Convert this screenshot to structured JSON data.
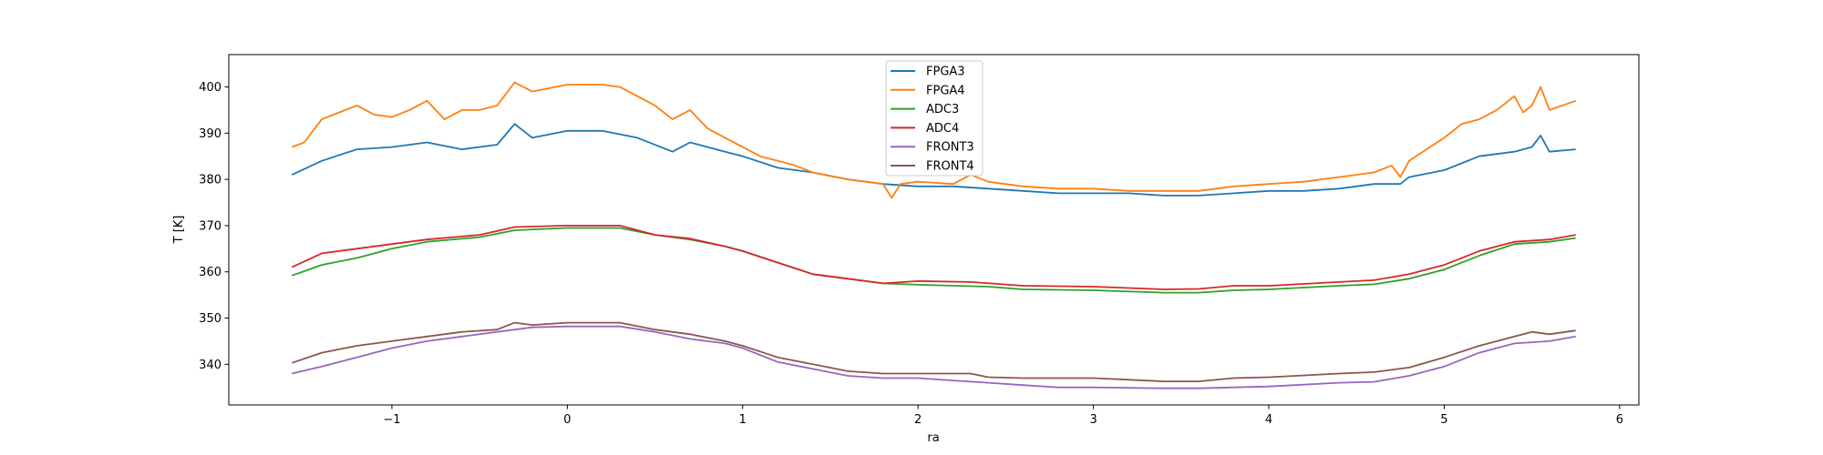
{
  "chart_data": {
    "type": "line",
    "title": "",
    "xlabel": "ra",
    "ylabel": "T [K]",
    "xlim": [
      -1.93,
      6.11
    ],
    "ylim": [
      331.2,
      407.0
    ],
    "xticks": [
      -1,
      0,
      1,
      2,
      3,
      4,
      5,
      6
    ],
    "xtick_labels": [
      "−1",
      "0",
      "1",
      "2",
      "3",
      "4",
      "5",
      "6"
    ],
    "yticks": [
      340,
      350,
      360,
      370,
      380,
      390,
      400
    ],
    "ytick_labels": [
      "340",
      "350",
      "360",
      "370",
      "380",
      "390",
      "400"
    ],
    "grid": false,
    "legend_position": "top-center",
    "series": [
      {
        "name": "FPGA3",
        "color": "#1f77b4",
        "x": [
          -1.57,
          -1.4,
          -1.2,
          -1,
          -0.8,
          -0.6,
          -0.4,
          -0.3,
          -0.2,
          0,
          0.2,
          0.4,
          0.6,
          0.7,
          0.9,
          1,
          1.2,
          1.4,
          1.6,
          1.8,
          2,
          2.2,
          2.4,
          2.6,
          2.8,
          3,
          3.2,
          3.4,
          3.6,
          3.8,
          4,
          4.2,
          4.4,
          4.6,
          4.75,
          4.8,
          5,
          5.2,
          5.3,
          5.4,
          5.5,
          5.55,
          5.6,
          5.75
        ],
        "y": [
          381,
          384,
          386.5,
          387,
          388,
          386.5,
          387.5,
          392,
          389,
          390.5,
          390.5,
          389,
          386,
          388,
          386,
          385,
          382.5,
          381.5,
          380,
          379,
          378.5,
          378.5,
          378,
          377.5,
          377,
          377,
          377,
          376.5,
          376.5,
          377,
          377.5,
          377.5,
          378,
          379,
          379,
          380.5,
          382,
          385,
          385.5,
          386,
          387,
          389.5,
          386,
          386.5
        ]
      },
      {
        "name": "FPGA4",
        "color": "#ff7f0e",
        "x": [
          -1.57,
          -1.5,
          -1.4,
          -1.3,
          -1.2,
          -1.1,
          -1,
          -0.9,
          -0.8,
          -0.7,
          -0.6,
          -0.5,
          -0.4,
          -0.3,
          -0.2,
          0,
          0.2,
          0.3,
          0.4,
          0.5,
          0.6,
          0.7,
          0.8,
          0.9,
          1,
          1.1,
          1.2,
          1.3,
          1.4,
          1.6,
          1.8,
          1.85,
          1.9,
          2,
          2.2,
          2.3,
          2.4,
          2.6,
          2.8,
          3,
          3.2,
          3.4,
          3.6,
          3.8,
          4,
          4.2,
          4.4,
          4.6,
          4.7,
          4.75,
          4.8,
          5,
          5.1,
          5.2,
          5.3,
          5.4,
          5.45,
          5.5,
          5.55,
          5.6,
          5.75
        ],
        "y": [
          387,
          388,
          393,
          394.5,
          396,
          394,
          393.5,
          395,
          397,
          393,
          395,
          395,
          396,
          401,
          399,
          400.5,
          400.5,
          400,
          398,
          396,
          393,
          395,
          391,
          389,
          387,
          385,
          384,
          383,
          381.5,
          380,
          379,
          376,
          379,
          379.5,
          379,
          381,
          379.5,
          378.5,
          378,
          378,
          377.5,
          377.5,
          377.5,
          378.5,
          379,
          379.5,
          380.5,
          381.5,
          383,
          380.5,
          384,
          389,
          392,
          393,
          395,
          398,
          394.5,
          396,
          400,
          395,
          397
        ]
      },
      {
        "name": "ADC3",
        "color": "#2ca02c",
        "x": [
          -1.57,
          -1.4,
          -1.2,
          -1,
          -0.8,
          -0.5,
          -0.3,
          0,
          0.3,
          0.5,
          0.7,
          0.9,
          1,
          1.2,
          1.4,
          1.6,
          1.8,
          2,
          2.4,
          2.6,
          3,
          3.4,
          3.6,
          3.8,
          4,
          4.4,
          4.6,
          4.8,
          5,
          5.2,
          5.4,
          5.6,
          5.75
        ],
        "y": [
          359.2,
          361.5,
          363,
          365,
          366.5,
          367.5,
          369,
          369.5,
          369.5,
          368,
          367,
          365.5,
          364.5,
          362,
          359.5,
          358.5,
          357.5,
          357.2,
          356.8,
          356.2,
          356,
          355.5,
          355.5,
          356,
          356.2,
          357,
          357.3,
          358.5,
          360.5,
          363.5,
          366,
          366.5,
          367.3
        ]
      },
      {
        "name": "ADC4",
        "color": "#d62728",
        "x": [
          -1.57,
          -1.4,
          -1.2,
          -1,
          -0.8,
          -0.5,
          -0.3,
          0,
          0.3,
          0.5,
          0.7,
          0.9,
          1,
          1.2,
          1.4,
          1.6,
          1.8,
          2,
          2.3,
          2.6,
          3,
          3.4,
          3.6,
          3.8,
          4,
          4.4,
          4.6,
          4.8,
          5,
          5.2,
          5.4,
          5.6,
          5.75
        ],
        "y": [
          361,
          364,
          365,
          366,
          367,
          368,
          369.7,
          370,
          370,
          368,
          367.2,
          365.5,
          364.5,
          362,
          359.5,
          358.5,
          357.5,
          358,
          357.8,
          357,
          356.8,
          356.2,
          356.3,
          357,
          357,
          357.8,
          358.2,
          359.5,
          361.5,
          364.5,
          366.5,
          367,
          368
        ]
      },
      {
        "name": "FRONT3",
        "color": "#9467bd",
        "x": [
          -1.57,
          -1.4,
          -1.2,
          -1,
          -0.8,
          -0.6,
          -0.4,
          -0.2,
          0,
          0.3,
          0.5,
          0.7,
          0.9,
          1,
          1.2,
          1.4,
          1.6,
          1.8,
          2,
          2.2,
          2.4,
          2.6,
          2.8,
          3,
          3.4,
          3.6,
          3.8,
          4,
          4.4,
          4.6,
          4.8,
          5,
          5.2,
          5.4,
          5.6,
          5.75
        ],
        "y": [
          338,
          339.5,
          341.5,
          343.5,
          345,
          346,
          347,
          348,
          348.2,
          348.2,
          347,
          345.5,
          344.5,
          343.5,
          340.5,
          339,
          337.5,
          337,
          337,
          336.5,
          336,
          335.5,
          335,
          335,
          334.8,
          334.8,
          335,
          335.2,
          336,
          336.2,
          337.5,
          339.5,
          342.5,
          344.5,
          345,
          346
        ]
      },
      {
        "name": "FRONT4",
        "color": "#8c564b",
        "x": [
          -1.57,
          -1.4,
          -1.2,
          -1,
          -0.8,
          -0.6,
          -0.4,
          -0.3,
          -0.2,
          0,
          0.3,
          0.5,
          0.7,
          0.9,
          1,
          1.2,
          1.4,
          1.6,
          1.8,
          2,
          2.2,
          2.3,
          2.4,
          2.6,
          3,
          3.4,
          3.6,
          3.8,
          4,
          4.4,
          4.6,
          4.8,
          5,
          5.2,
          5.4,
          5.5,
          5.6,
          5.75
        ],
        "y": [
          340.3,
          342.5,
          344,
          345,
          346,
          347,
          347.5,
          349,
          348.5,
          349,
          349,
          347.5,
          346.5,
          345,
          344,
          341.5,
          340,
          338.5,
          338,
          338,
          338,
          338,
          337.2,
          337,
          337,
          336.3,
          336.3,
          337,
          337.2,
          338,
          338.3,
          339.3,
          341.5,
          344,
          346,
          347,
          346.5,
          347.3
        ]
      }
    ]
  }
}
